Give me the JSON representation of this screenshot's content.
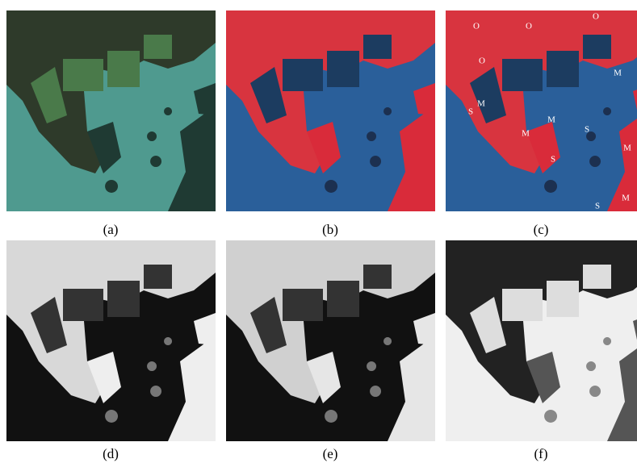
{
  "panels": [
    {
      "caption": "(a)"
    },
    {
      "caption": "(b)"
    },
    {
      "caption": "(c)"
    },
    {
      "caption": "(d)"
    },
    {
      "caption": "(e)"
    },
    {
      "caption": "(f)"
    }
  ],
  "annotations": [
    "O",
    "O",
    "O",
    "O",
    "M",
    "M",
    "M",
    "M",
    "M",
    "M",
    "S",
    "S",
    "S",
    "S"
  ]
}
